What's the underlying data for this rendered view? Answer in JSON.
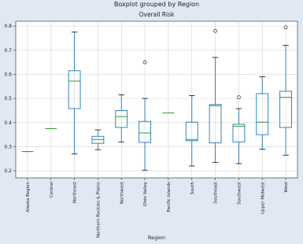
{
  "chart_data": {
    "type": "box",
    "title": "Boxplot grouped by Region",
    "subtitle": "Overall Risk",
    "x_label": "Region",
    "categories": [
      "Alaska Region",
      "Central",
      "Northeast",
      "Northern Rockies & Plains",
      "Northwest",
      "Ohio Valley",
      "Pacific Islands",
      "South",
      "Southeast",
      "Southwest",
      "Upper Midwest",
      "West"
    ],
    "boxes": [
      {
        "min": 0.28,
        "q1": 0.28,
        "median": 0.28,
        "q3": 0.28,
        "max": 0.28,
        "outliers": []
      },
      {
        "min": 0.375,
        "q1": 0.375,
        "median": 0.375,
        "q3": 0.375,
        "max": 0.375,
        "outliers": []
      },
      {
        "min": 0.27,
        "q1": 0.458,
        "median": 0.572,
        "q3": 0.615,
        "max": 0.775,
        "outliers": []
      },
      {
        "min": 0.288,
        "q1": 0.314,
        "median": 0.33,
        "q3": 0.343,
        "max": 0.37,
        "outliers": []
      },
      {
        "min": 0.32,
        "q1": 0.38,
        "median": 0.425,
        "q3": 0.45,
        "max": 0.515,
        "outliers": []
      },
      {
        "min": 0.203,
        "q1": 0.318,
        "median": 0.357,
        "q3": 0.405,
        "max": 0.5,
        "outliers": [
          0.65
        ]
      },
      {
        "min": 0.44,
        "q1": 0.44,
        "median": 0.44,
        "q3": 0.44,
        "max": 0.44,
        "outliers": []
      },
      {
        "min": 0.22,
        "q1": 0.325,
        "median": 0.33,
        "q3": 0.402,
        "max": 0.512,
        "outliers": []
      },
      {
        "min": 0.235,
        "q1": 0.316,
        "median": 0.47,
        "q3": 0.475,
        "max": 0.67,
        "outliers": [
          0.78
        ]
      },
      {
        "min": 0.23,
        "q1": 0.32,
        "median": 0.385,
        "q3": 0.393,
        "max": 0.458,
        "outliers": [
          0.505
        ]
      },
      {
        "min": 0.29,
        "q1": 0.35,
        "median": 0.402,
        "q3": 0.52,
        "max": 0.59,
        "outliers": []
      },
      {
        "min": 0.265,
        "q1": 0.38,
        "median": 0.505,
        "q3": 0.53,
        "max": 0.72,
        "outliers": [
          0.795
        ]
      }
    ],
    "box_color": "#1f77b4",
    "median_color": "#2ca02c",
    "ylim": [
      0.171,
      0.82
    ],
    "yticks": [
      0.2,
      0.3,
      0.4,
      0.5,
      0.6,
      0.7,
      0.8
    ],
    "grid": true
  }
}
